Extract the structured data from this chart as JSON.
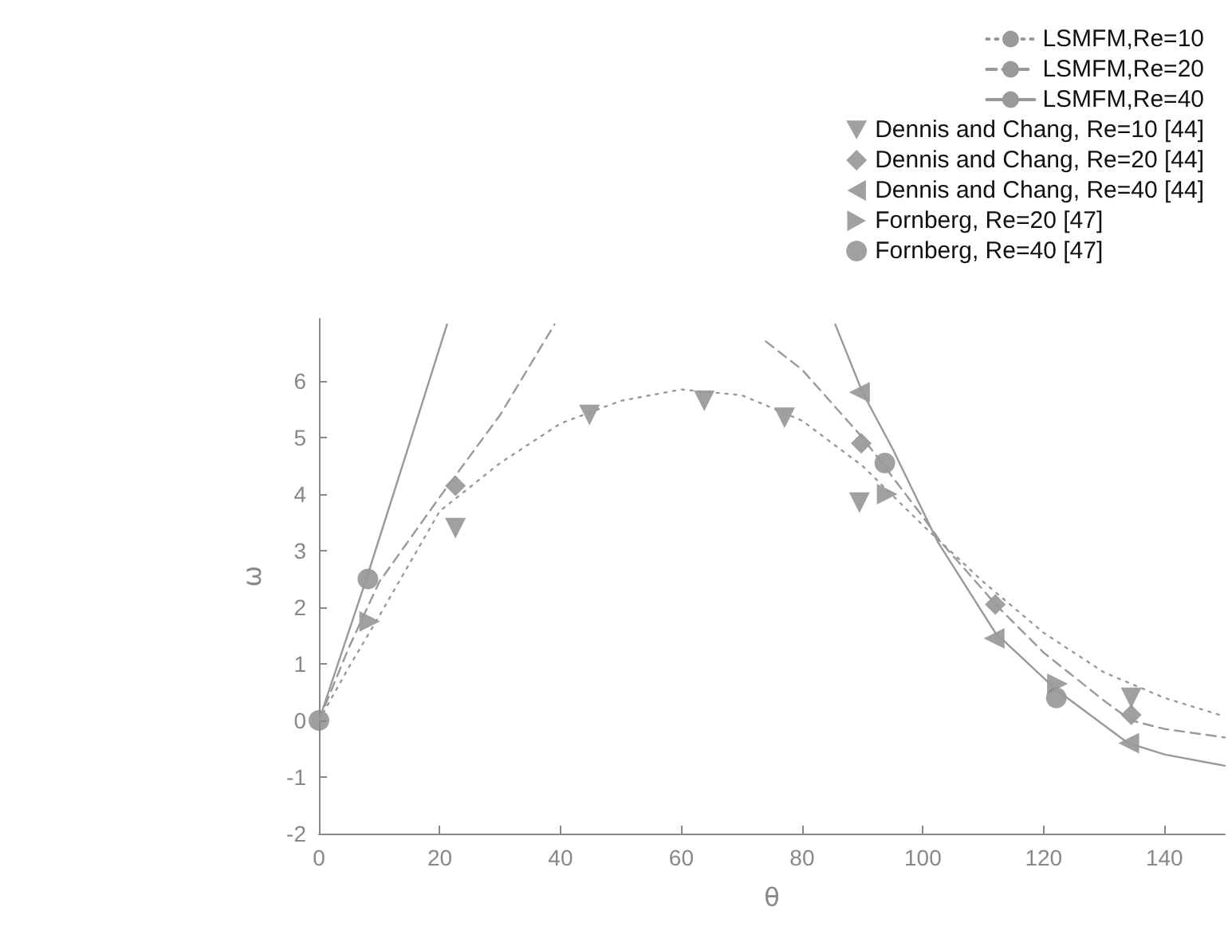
{
  "chart_data": {
    "type": "scatter",
    "xlabel": "θ",
    "ylabel": "ω",
    "xlim": [
      0,
      150
    ],
    "xticks": [
      0,
      20,
      40,
      60,
      80,
      100,
      120,
      140
    ],
    "ylim": [
      -2,
      7.1
    ],
    "yticks": [
      -2,
      -1,
      0,
      1,
      2,
      3,
      4,
      5,
      6
    ],
    "grid": false,
    "legend": "top right",
    "series": [
      {
        "name": "LSMFM,Re=10",
        "type": "line",
        "line_style": "dotted",
        "marker": "none",
        "color": "#999999",
        "x": [
          0,
          5,
          10,
          20,
          30,
          40,
          50,
          60,
          70,
          80,
          90,
          100,
          110,
          120,
          130,
          140,
          150
        ],
        "values": [
          0,
          0.95,
          1.85,
          3.7,
          4.55,
          5.25,
          5.65,
          5.85,
          5.75,
          5.3,
          4.5,
          3.45,
          2.45,
          1.55,
          0.85,
          0.4,
          0.07
        ]
      },
      {
        "name": "LSMFM,Re=20",
        "type": "line",
        "line_style": "dashed",
        "marker": "none",
        "color": "#999999",
        "x": [
          0,
          5,
          10,
          20,
          30,
          39,
          56,
          74,
          80,
          90,
          100,
          103,
          112.5,
          120,
          130,
          134.5,
          140,
          150
        ],
        "values": [
          0,
          1.3,
          2.45,
          3.95,
          5.4,
          7.0,
          null,
          6.7,
          6.2,
          5.0,
          3.6,
          3.15,
          2.0,
          1.2,
          0.35,
          0,
          -0.15,
          -0.3
        ]
      },
      {
        "name": "LSMFM,Re=40",
        "type": "line",
        "line_style": "solid",
        "marker": "none",
        "color": "#999999",
        "x": [
          0,
          8,
          15,
          21.2,
          55,
          85.5,
          90,
          95,
          102.5,
          112,
          122,
          134,
          140,
          150
        ],
        "values": [
          0,
          2.55,
          4.9,
          7.0,
          null,
          7.0,
          5.8,
          4.8,
          3.15,
          1.55,
          0.55,
          -0.4,
          -0.6,
          -0.8
        ]
      },
      {
        "name": "Dennis and Chang, Re=10 [44]",
        "marker": "triangle-down",
        "color": "#888888",
        "x": [
          22.6,
          44.8,
          63.8,
          77.1,
          89.5,
          134.5
        ],
        "values": [
          3.4,
          5.4,
          5.65,
          5.35,
          3.85,
          0.4
        ]
      },
      {
        "name": "Dennis and Chang, Re=20 [44]",
        "marker": "diamond",
        "color": "#888888",
        "x": [
          22.6,
          89.8,
          112,
          134.5
        ],
        "values": [
          4.15,
          4.9,
          2.05,
          0.1
        ]
      },
      {
        "name": "Dennis and Chang, Re=40 [44]",
        "marker": "triangle-left",
        "color": "#888888",
        "x": [
          89.5,
          111.8,
          134.1
        ],
        "values": [
          5.8,
          1.45,
          -0.4
        ]
      },
      {
        "name": "Fornberg, Re=20 [47]",
        "marker": "triangle-right",
        "color": "#888888",
        "x": [
          8.4,
          94.1,
          122.3
        ],
        "values": [
          1.75,
          4.0,
          0.65
        ]
      },
      {
        "name": "Fornberg, Re=40 [47]",
        "marker": "circle",
        "color": "#888888",
        "x": [
          0,
          8.1,
          93.7,
          122.1
        ],
        "values": [
          0,
          2.5,
          4.55,
          0.4
        ]
      }
    ]
  }
}
